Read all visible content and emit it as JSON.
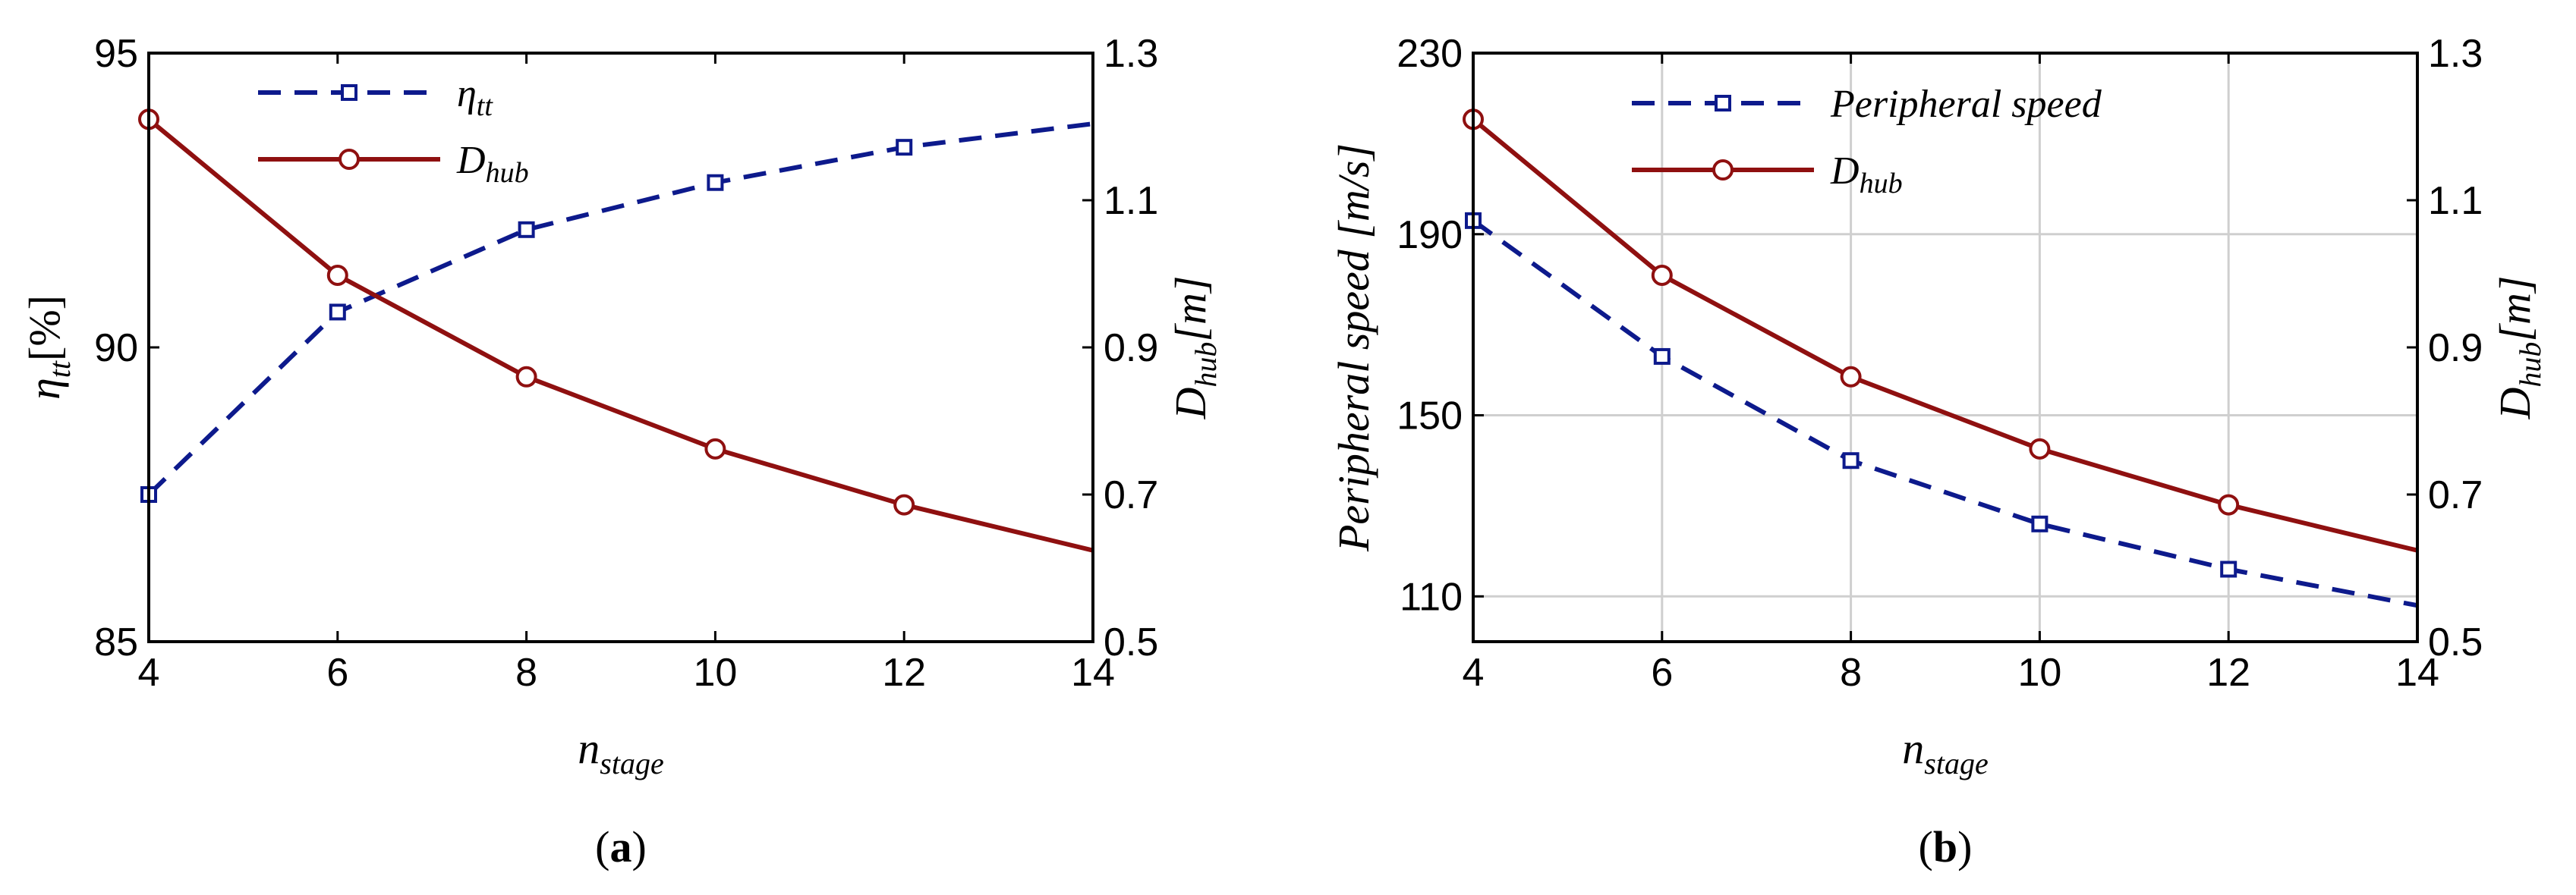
{
  "chart_data": [
    {
      "type": "line",
      "panel_label": "a",
      "xlabel": {
        "base": "n",
        "sub": "stage"
      },
      "ylabel_left": {
        "base": "η",
        "sub": "tt",
        "unit": "[%]"
      },
      "ylabel_right": {
        "base": "D",
        "sub": "hub",
        "unit": "[m]"
      },
      "xlim": [
        4,
        14
      ],
      "ylim_left": [
        85,
        95
      ],
      "ylim_right": [
        0.5,
        1.3
      ],
      "xticks": [
        "4",
        "6",
        "8",
        "10",
        "12",
        "14"
      ],
      "yticks_left": [
        "85",
        "90",
        "95"
      ],
      "yticks_right": [
        "0.5",
        "0.7",
        "0.9",
        "1.1",
        "1.3"
      ],
      "grid": false,
      "legend_position": "top-center",
      "series": [
        {
          "name": {
            "base": "η",
            "sub": "tt"
          },
          "axis": "left",
          "color": "#0d1a8c",
          "dash": true,
          "marker": "square",
          "x": [
            4,
            6,
            8,
            10,
            12,
            14
          ],
          "y": [
            87.5,
            90.6,
            92.0,
            92.8,
            93.4,
            93.8
          ],
          "marker_x": [
            4,
            6,
            8,
            10,
            12
          ]
        },
        {
          "name": {
            "base": "D",
            "sub": "hub"
          },
          "axis": "right",
          "color": "#8f1010",
          "dash": false,
          "marker": "circle",
          "x": [
            4,
            6,
            8,
            10,
            12,
            14
          ],
          "y": [
            1.21,
            0.998,
            0.86,
            0.762,
            0.686,
            0.624
          ],
          "marker_x": [
            4,
            6,
            8,
            10,
            12
          ]
        }
      ]
    },
    {
      "type": "line",
      "panel_label": "b",
      "xlabel": {
        "base": "n",
        "sub": "stage"
      },
      "ylabel_left": {
        "base": "Peripheral speed",
        "sub": "",
        "unit": "[m/s]"
      },
      "ylabel_right": {
        "base": "D",
        "sub": "hub",
        "unit": "[m]"
      },
      "xlim": [
        4,
        14
      ],
      "ylim_left": [
        100,
        230
      ],
      "ylim_right": [
        0.5,
        1.3
      ],
      "xticks": [
        "4",
        "6",
        "8",
        "10",
        "12",
        "14"
      ],
      "yticks_left": [
        "110",
        "150",
        "190",
        "230"
      ],
      "yticks_right": [
        "0.5",
        "0.7",
        "0.9",
        "1.1",
        "1.3"
      ],
      "grid": true,
      "legend_position": "top-right",
      "series": [
        {
          "name": {
            "base": "Peripheral speed",
            "sub": ""
          },
          "axis": "left",
          "color": "#0d1a8c",
          "dash": true,
          "marker": "square",
          "x": [
            4,
            6,
            8,
            10,
            12,
            14
          ],
          "y": [
            193,
            163,
            140,
            126,
            116,
            108
          ],
          "marker_x": [
            4,
            6,
            8,
            10,
            12
          ]
        },
        {
          "name": {
            "base": "D",
            "sub": "hub"
          },
          "axis": "right",
          "color": "#8f1010",
          "dash": false,
          "marker": "circle",
          "x": [
            4,
            6,
            8,
            10,
            12,
            14
          ],
          "y": [
            1.21,
            0.998,
            0.86,
            0.762,
            0.686,
            0.624
          ],
          "marker_x": [
            4,
            6,
            8,
            10,
            12
          ]
        }
      ]
    }
  ]
}
